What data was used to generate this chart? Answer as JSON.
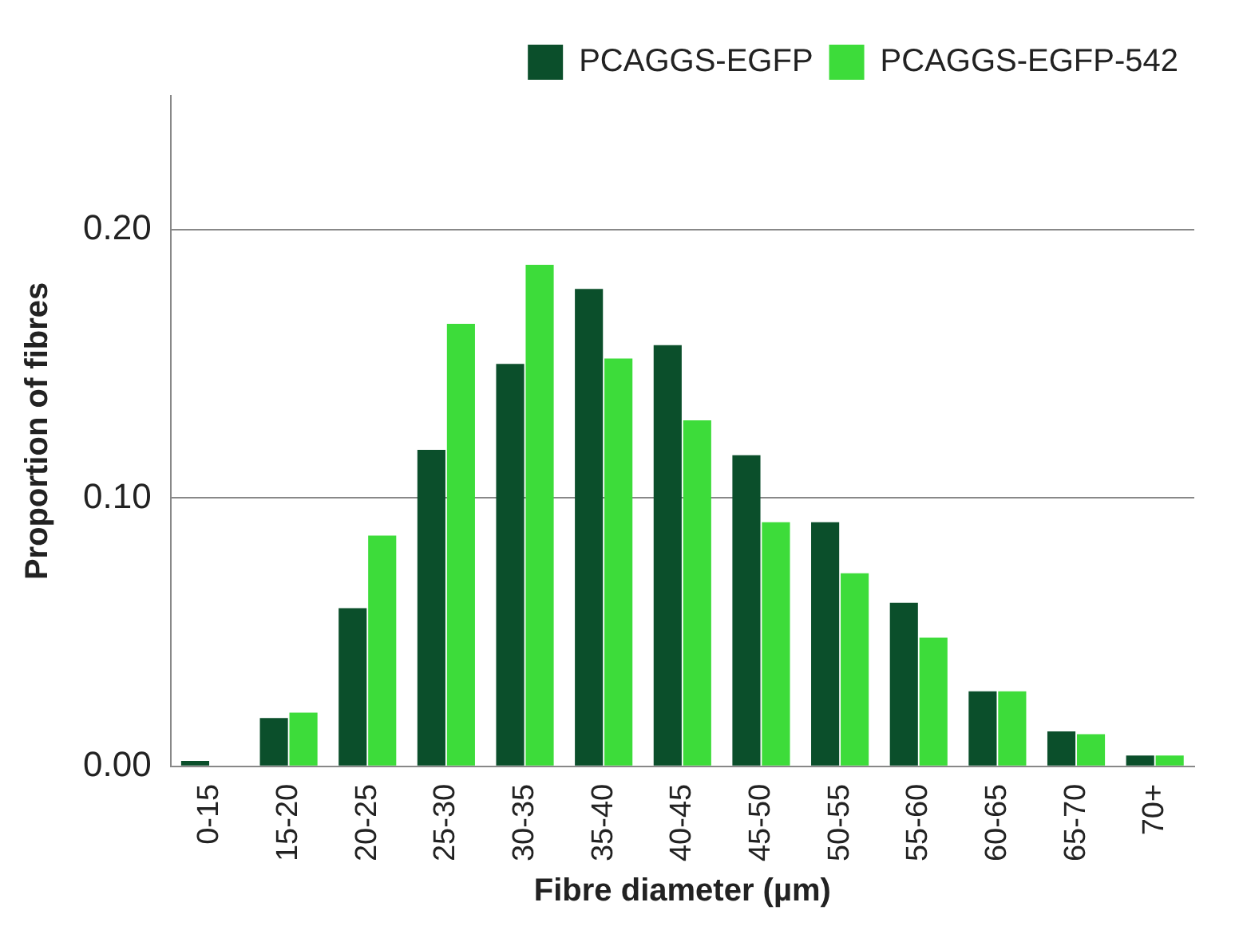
{
  "chart_data": {
    "type": "bar",
    "xlabel": "Fibre diameter (µm)",
    "ylabel": "Proportion of fibres",
    "categories": [
      "0-15",
      "15-20",
      "20-25",
      "25-30",
      "30-35",
      "35-40",
      "40-45",
      "45-50",
      "50-55",
      "55-60",
      "60-65",
      "65-70",
      "70+"
    ],
    "series": [
      {
        "name": "PCAGGS-EGFP",
        "color": "#0b4f2b",
        "values": [
          0.002,
          0.018,
          0.059,
          0.118,
          0.15,
          0.178,
          0.157,
          0.116,
          0.091,
          0.061,
          0.028,
          0.013,
          0.004
        ]
      },
      {
        "name": "PCAGGS-EGFP-542",
        "color": "#3ddc3a",
        "values": [
          0,
          0.02,
          0.086,
          0.165,
          0.187,
          0.152,
          0.129,
          0.091,
          0.072,
          0.048,
          0.028,
          0.012,
          0.004
        ]
      }
    ],
    "ylim": [
      0,
      0.25
    ],
    "yticks": [
      {
        "value": 0,
        "label": "0.00"
      },
      {
        "value": 0.1,
        "label": "0.10"
      },
      {
        "value": 0.2,
        "label": "0.20"
      }
    ],
    "grid": "y",
    "legend": "top right"
  }
}
